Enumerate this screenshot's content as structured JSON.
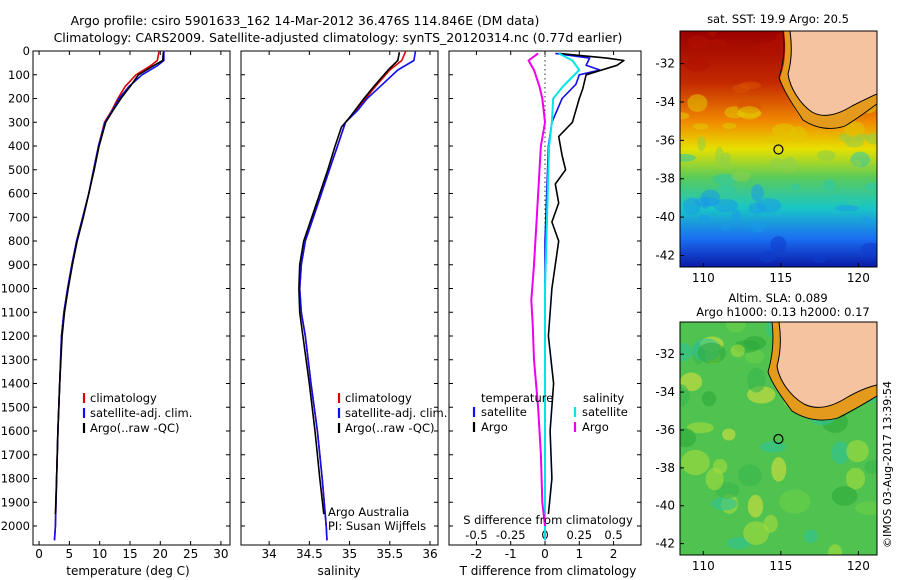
{
  "header": {
    "title_line1": "Argo profile: csiro 5901633_162 14-Mar-2012 36.476S 114.846E (DM data)",
    "title_line2": "Climatology: CARS2009. Satellite-adjusted climatology: synTS_20120314.nc (0.77d earlier)"
  },
  "credits": {
    "argo_australia": "Argo Australia",
    "pi": "PI: Susan Wijffels",
    "timestamp": "©IMOS 03-Aug-2017 13:39:54"
  },
  "colors": {
    "climatology": "#dd0000",
    "satellite": "#1010ee",
    "argo": "#000000",
    "salinity_satellite": "#00e5e5",
    "salinity_argo": "#ee00ee",
    "land": "#f6c3a0",
    "coast_band": "#e49a1c"
  },
  "chart_data": [
    {
      "type": "line",
      "name": "temperature-profile",
      "title": "",
      "xlabel": "temperature (deg C)",
      "ylabel": "",
      "xlim": [
        -1,
        31.5
      ],
      "ylim": [
        2080,
        0
      ],
      "xticks": [
        0,
        5,
        10,
        15,
        20,
        25,
        30
      ],
      "yticks": [
        0,
        100,
        200,
        300,
        400,
        500,
        600,
        700,
        800,
        900,
        1000,
        1100,
        1200,
        1300,
        1400,
        1500,
        1600,
        1700,
        1800,
        1900,
        2000
      ],
      "legend": [
        "climatology",
        "satellite-adj. clim.",
        "Argo(..raw -QC)"
      ],
      "series": [
        {
          "name": "climatology",
          "color": "#dd0000",
          "x": [
            19.8,
            19.5,
            18.5,
            16.0,
            14.2,
            13.0,
            12.0,
            10.8,
            9.8,
            9.0,
            8.2,
            7.2,
            6.2,
            5.4,
            4.7,
            4.1,
            3.7,
            3.4,
            3.1,
            2.9,
            2.7,
            2.55
          ],
          "y": [
            0,
            40,
            60,
            100,
            150,
            200,
            250,
            300,
            400,
            500,
            600,
            700,
            800,
            900,
            1000,
            1100,
            1200,
            1400,
            1600,
            1800,
            2000,
            2060
          ]
        },
        {
          "name": "satellite-adj. clim.",
          "color": "#1010ee",
          "x": [
            20.6,
            20.6,
            19.6,
            17.0,
            14.8,
            13.2,
            12.1,
            10.9,
            9.8,
            9.0,
            8.2,
            7.2,
            6.2,
            5.4,
            4.7,
            4.1,
            3.7,
            3.4,
            3.1,
            2.9,
            2.7,
            2.55
          ],
          "y": [
            0,
            40,
            60,
            100,
            150,
            200,
            250,
            300,
            400,
            500,
            600,
            700,
            800,
            900,
            1000,
            1100,
            1200,
            1400,
            1600,
            1800,
            2000,
            2060
          ]
        },
        {
          "name": "Argo(..raw -QC)",
          "color": "#000000",
          "x": [
            20.5,
            20.4,
            19.0,
            16.4,
            15.0,
            13.5,
            12.2,
            11.0,
            9.9,
            9.1,
            8.2,
            7.3,
            6.3,
            5.5,
            4.8,
            4.2,
            3.8,
            3.4,
            3.1,
            2.9,
            2.7
          ],
          "y": [
            5,
            40,
            60,
            100,
            150,
            200,
            250,
            300,
            400,
            500,
            600,
            700,
            800,
            900,
            1000,
            1100,
            1200,
            1400,
            1600,
            1800,
            1950
          ]
        }
      ]
    },
    {
      "type": "line",
      "name": "salinity-profile",
      "title": "",
      "xlabel": "salinity",
      "ylabel": "",
      "xlim": [
        33.65,
        36.1
      ],
      "ylim": [
        2080,
        0
      ],
      "xticks": [
        34,
        34.5,
        35,
        35.5,
        36
      ],
      "xticklabels": [
        "34",
        "34.5",
        "35",
        "35.5",
        "36"
      ],
      "legend": [
        "climatology",
        "satellite-adj. clim.",
        "Argo(..raw -QC)"
      ],
      "series": [
        {
          "name": "climatology",
          "color": "#dd0000",
          "x": [
            35.7,
            35.65,
            35.5,
            35.32,
            35.2,
            35.08,
            34.95,
            34.85,
            34.75,
            34.65,
            34.55,
            34.45,
            34.4,
            34.38,
            34.4,
            34.45,
            34.52,
            34.6,
            34.66,
            34.71,
            34.72
          ],
          "y": [
            0,
            40,
            80,
            150,
            200,
            250,
            300,
            400,
            500,
            600,
            700,
            800,
            900,
            1000,
            1100,
            1200,
            1400,
            1600,
            1800,
            2000,
            2060
          ]
        },
        {
          "name": "satellite-adj. clim.",
          "color": "#1010ee",
          "x": [
            35.82,
            35.8,
            35.6,
            35.38,
            35.22,
            35.1,
            34.95,
            34.85,
            34.75,
            34.65,
            34.55,
            34.45,
            34.4,
            34.38,
            34.4,
            34.45,
            34.52,
            34.6,
            34.66,
            34.71,
            34.72
          ],
          "y": [
            0,
            40,
            80,
            150,
            200,
            250,
            300,
            400,
            500,
            600,
            700,
            800,
            900,
            1000,
            1100,
            1200,
            1400,
            1600,
            1800,
            2000,
            2060
          ]
        },
        {
          "name": "Argo(..raw -QC)",
          "color": "#000000",
          "x": [
            35.62,
            35.6,
            35.48,
            35.3,
            35.18,
            35.0,
            34.9,
            34.82,
            34.73,
            34.63,
            34.53,
            34.43,
            34.38,
            34.37,
            34.38,
            34.42,
            34.5,
            34.57,
            34.63,
            34.68
          ],
          "y": [
            5,
            40,
            80,
            150,
            200,
            280,
            320,
            400,
            500,
            600,
            700,
            800,
            900,
            1000,
            1100,
            1200,
            1400,
            1600,
            1800,
            1950
          ]
        }
      ]
    },
    {
      "type": "line",
      "name": "difference-from-climatology",
      "title": "",
      "xlabel": "T difference from climatology",
      "xlabel_top": "S difference from climatology",
      "ylabel": "",
      "xlim": [
        -2.8,
        2.8
      ],
      "ylim": [
        2080,
        0
      ],
      "xticks": [
        -2,
        -1,
        0,
        1,
        2
      ],
      "xticklabels": [
        "-2",
        "-1",
        "0",
        "1",
        "2"
      ],
      "sticks": [
        -0.5,
        -0.25,
        0,
        0.25,
        0.5
      ],
      "sticklabels": [
        "-0.5",
        "-0.25",
        "0",
        "0.25",
        "0.5"
      ],
      "legend": {
        "temperature_heading": "temperature",
        "salinity_heading": "salinity",
        "temperature_entries": [
          "satellite",
          "Argo"
        ],
        "salinity_entries": [
          "satellite",
          "Argo"
        ]
      },
      "series": [
        {
          "name": "T satellite",
          "color": "#1010ee",
          "x": [
            0.3,
            1.3,
            1.2,
            1.6,
            1.0,
            0.9,
            0.5,
            0.2,
            0.1,
            0.05,
            0,
            0,
            0,
            0,
            0,
            0
          ],
          "y": [
            10,
            30,
            60,
            80,
            100,
            140,
            200,
            300,
            400,
            600,
            800,
            1000,
            1300,
            1600,
            1900,
            2060
          ]
        },
        {
          "name": "T Argo",
          "color": "#000000",
          "x": [
            0.4,
            1.8,
            2.3,
            2.1,
            1.2,
            1.1,
            1.0,
            0.8,
            0.4,
            0.5,
            0.6,
            0.3,
            0.4,
            0.2,
            0.4,
            0.3,
            0.2,
            0.1,
            0.25,
            0.15,
            0.2,
            0.1
          ],
          "y": [
            10,
            30,
            40,
            60,
            100,
            160,
            200,
            300,
            360,
            440,
            500,
            560,
            640,
            720,
            800,
            900,
            1000,
            1200,
            1400,
            1600,
            1800,
            1950
          ]
        },
        {
          "name": "S satellite",
          "color": "#00e5e5",
          "x": [
            0.1,
            0.2,
            0.25,
            0.13,
            0.06,
            0.05,
            0.03,
            0.02,
            0.01,
            0,
            0,
            0,
            0
          ],
          "y": [
            10,
            40,
            80,
            150,
            200,
            300,
            400,
            600,
            800,
            1000,
            1300,
            1600,
            2060
          ]
        },
        {
          "name": "S Argo",
          "color": "#ee00ee",
          "x": [
            -0.05,
            -0.12,
            -0.08,
            -0.04,
            -0.02,
            0,
            -0.03,
            -0.04,
            -0.06,
            -0.08,
            -0.1,
            -0.09,
            -0.08,
            -0.05,
            -0.03,
            -0.02,
            0
          ],
          "y": [
            10,
            40,
            80,
            150,
            200,
            300,
            400,
            500,
            700,
            900,
            1050,
            1150,
            1300,
            1500,
            1700,
            1900,
            2000
          ]
        }
      ]
    },
    {
      "type": "heatmap",
      "name": "sst-map",
      "title": "sat. SST: 19.9 Argo: 20.5",
      "xticks": [
        110,
        115,
        120
      ],
      "yticks": [
        -32,
        -34,
        -36,
        -38,
        -40,
        -42
      ],
      "xlim": [
        108.5,
        121.2
      ],
      "ylim": [
        -42.6,
        -30.3
      ],
      "argo_position": [
        114.846,
        -36.476
      ]
    },
    {
      "type": "heatmap",
      "name": "sla-map",
      "title": "Altim. SLA: 0.089",
      "title2": "Argo h1000: 0.13 h2000: 0.17",
      "xticks": [
        110,
        115,
        120
      ],
      "yticks": [
        -32,
        -34,
        -36,
        -38,
        -40,
        -42
      ],
      "xlim": [
        108.5,
        121.2
      ],
      "ylim": [
        -42.6,
        -30.3
      ],
      "argo_position": [
        114.846,
        -36.476
      ]
    }
  ]
}
